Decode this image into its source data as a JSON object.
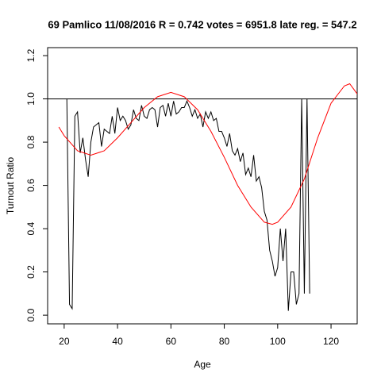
{
  "chart_data": {
    "type": "line",
    "title": "69 Pamlico 11/08/2016 R = 0.742 votes = 6951.8 late reg. = 547.2",
    "x_label": "Age",
    "y_label": "Turnout Ratio",
    "xlim": [
      13.8,
      129.8
    ],
    "ylim": [
      -0.04,
      1.237
    ],
    "xticks": [
      20,
      40,
      60,
      80,
      100,
      120
    ],
    "yticks": [
      {
        "value": 0,
        "label": "0.0"
      },
      0.2,
      0.4,
      0.6,
      0.8,
      {
        "value": 1,
        "label": "1.0"
      },
      1.2
    ],
    "hline": 1,
    "series": [
      {
        "color": "#000000",
        "x": [
          21,
          22,
          23,
          24,
          25,
          26,
          27,
          28,
          29,
          30,
          31,
          32,
          33,
          34,
          35,
          36,
          37,
          38,
          39,
          40,
          41,
          42,
          43,
          44,
          45,
          46,
          47,
          48,
          49,
          50,
          51,
          52,
          53,
          54,
          55,
          56,
          57,
          58,
          59,
          60,
          61,
          62,
          63,
          64,
          65,
          66,
          67,
          68,
          69,
          70,
          71,
          72,
          73,
          74,
          75,
          76,
          77,
          78,
          79,
          80,
          81,
          82,
          83,
          84,
          85,
          86,
          87,
          88,
          89,
          90,
          91,
          92,
          93,
          94,
          95,
          96,
          97,
          98,
          99,
          100,
          101,
          102,
          103,
          104,
          105,
          106,
          107,
          108,
          109,
          110,
          111,
          112
        ],
        "values": [
          1.0,
          0.05,
          0.03,
          0.92,
          0.94,
          0.75,
          0.82,
          0.72,
          0.64,
          0.8,
          0.87,
          0.88,
          0.89,
          0.78,
          0.86,
          0.85,
          0.84,
          0.92,
          0.84,
          0.96,
          0.9,
          0.92,
          0.9,
          0.86,
          0.88,
          0.95,
          0.91,
          0.9,
          0.97,
          0.92,
          0.91,
          0.95,
          0.96,
          0.95,
          0.87,
          0.96,
          0.97,
          0.92,
          0.98,
          0.92,
          0.99,
          0.93,
          0.94,
          0.96,
          0.96,
          0.99,
          0.96,
          0.92,
          0.95,
          0.91,
          0.93,
          0.87,
          0.94,
          0.91,
          0.94,
          0.9,
          0.91,
          0.85,
          0.85,
          0.82,
          0.78,
          0.84,
          0.76,
          0.74,
          0.77,
          0.71,
          0.75,
          0.65,
          0.68,
          0.64,
          0.74,
          0.62,
          0.64,
          0.59,
          0.48,
          0.44,
          0.3,
          0.25,
          0.18,
          0.22,
          0.4,
          0.25,
          0.4,
          0.02,
          0.2,
          0.2,
          0.05,
          0.1,
          1.0,
          0.1,
          1.0,
          0.1
        ]
      },
      {
        "color": "#ff0000",
        "x": [
          18,
          20,
          25,
          30,
          35,
          40,
          45,
          50,
          55,
          60,
          65,
          70,
          75,
          80,
          85,
          90,
          95,
          98,
          100,
          105,
          110,
          115,
          120,
          125,
          127,
          130
        ],
        "values": [
          0.87,
          0.83,
          0.76,
          0.74,
          0.76,
          0.82,
          0.89,
          0.96,
          1.01,
          1.03,
          1.01,
          0.95,
          0.85,
          0.73,
          0.6,
          0.5,
          0.43,
          0.42,
          0.43,
          0.5,
          0.63,
          0.82,
          0.98,
          1.06,
          1.07,
          1.02
        ]
      }
    ]
  }
}
